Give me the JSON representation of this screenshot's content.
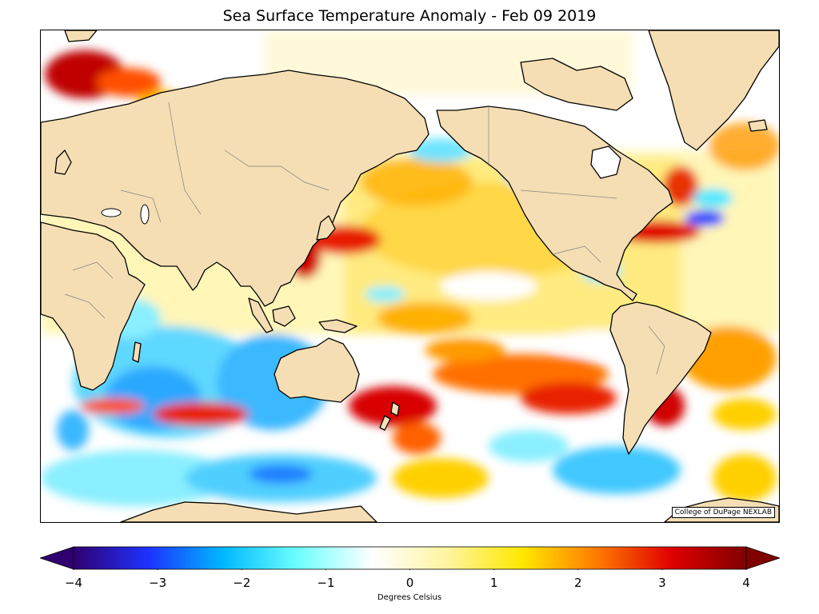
{
  "title": "Sea Surface Temperature Anomaly - Feb 09 2019",
  "credit": "College of DuPage NEXLAB",
  "map": {
    "projection": "equirectangular, Pacific-centered",
    "ocean_base_color": "#ffffff",
    "land_color": "#f5deb3",
    "coastline_color": "#000000",
    "border_color": "#808080"
  },
  "colorbar": {
    "label": "Degrees Celsius",
    "min": -4,
    "max": 4,
    "extend": "both",
    "ticks": [
      "−4",
      "−3",
      "−2",
      "−1",
      "0",
      "1",
      "2",
      "3",
      "4"
    ],
    "colors": [
      "#30006f",
      "#1d32ff",
      "#00b8ff",
      "#6dffff",
      "#ffffff",
      "#fff4a0",
      "#ffe800",
      "#ff7b00",
      "#e00000",
      "#800000"
    ]
  }
}
